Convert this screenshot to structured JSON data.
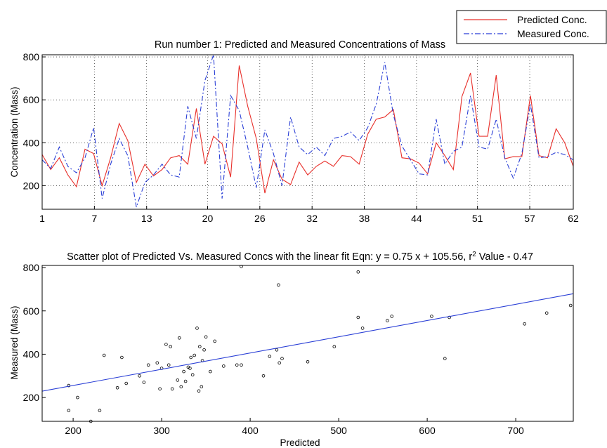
{
  "chart_data": [
    {
      "type": "line",
      "title": "Run number 1: Predicted and Measured Concentrations of Mass",
      "xlabel": "",
      "ylabel": "Concentration (Mass)",
      "xlim": [
        1,
        62
      ],
      "ylim": [
        90,
        810
      ],
      "xticks": [
        1,
        7,
        13,
        20,
        26,
        32,
        38,
        44,
        51,
        57,
        62
      ],
      "xtick_labels": [
        "1",
        "7",
        "13",
        "20",
        "26",
        "32",
        "38",
        "44",
        "51",
        "57",
        "62"
      ],
      "yticks": [
        200,
        400,
        600,
        800
      ],
      "ytick_labels": [
        "200",
        "400",
        "600",
        "800"
      ],
      "grid": true,
      "legend": {
        "placement": "top-right",
        "entries": [
          "Predicted Conc.",
          "Measured Conc."
        ]
      },
      "series": [
        {
          "name": "Predicted Conc.",
          "color": "#e8302b",
          "style": "solid",
          "values": [
            345,
            275,
            330,
            250,
            195,
            370,
            350,
            200,
            330,
            490,
            410,
            215,
            300,
            245,
            275,
            330,
            340,
            300,
            560,
            300,
            430,
            395,
            240,
            760,
            570,
            420,
            165,
            320,
            230,
            205,
            310,
            250,
            290,
            315,
            290,
            340,
            335,
            300,
            440,
            510,
            520,
            555,
            330,
            325,
            305,
            255,
            400,
            340,
            275,
            615,
            725,
            430,
            430,
            715,
            325,
            335,
            335,
            620,
            340,
            330,
            465,
            400,
            290
          ]
        },
        {
          "name": "Measured Conc.",
          "color": "#2a3fd6",
          "style": "dashdot",
          "values": [
            320,
            280,
            380,
            290,
            260,
            330,
            470,
            140,
            300,
            420,
            340,
            100,
            215,
            250,
            300,
            250,
            240,
            570,
            420,
            690,
            810,
            140,
            620,
            550,
            380,
            190,
            460,
            350,
            200,
            520,
            380,
            345,
            380,
            340,
            420,
            430,
            450,
            410,
            470,
            580,
            775,
            530,
            385,
            320,
            255,
            250,
            510,
            300,
            360,
            380,
            620,
            380,
            370,
            510,
            330,
            235,
            350,
            580,
            330,
            335,
            355,
            345,
            320
          ]
        }
      ]
    },
    {
      "type": "scatter",
      "title_main": "Scatter plot of Predicted Vs. Measured Concs with the linear fit Eqn: y = 0.75 x + 105.56, r",
      "title_sup": "2",
      "title_tail": " Value - 0.47",
      "xlabel": "Predicted",
      "ylabel": "Measured (Mass)",
      "xlim": [
        165,
        765
      ],
      "ylim": [
        90,
        810
      ],
      "xticks": [
        200,
        300,
        400,
        500,
        600,
        700
      ],
      "xtick_labels": [
        "200",
        "300",
        "400",
        "500",
        "600",
        "700"
      ],
      "yticks": [
        200,
        400,
        600,
        800
      ],
      "ytick_labels": [
        "200",
        "400",
        "600",
        "800"
      ],
      "grid": false,
      "fit": {
        "slope": 0.75,
        "intercept": 105.56,
        "r2": 0.47,
        "color": "#2a3fd6"
      },
      "points": [
        [
          195,
          140
        ],
        [
          195,
          255
        ],
        [
          205,
          200
        ],
        [
          220,
          90
        ],
        [
          230,
          140
        ],
        [
          235,
          395
        ],
        [
          250,
          245
        ],
        [
          255,
          385
        ],
        [
          260,
          265
        ],
        [
          275,
          300
        ],
        [
          280,
          270
        ],
        [
          285,
          350
        ],
        [
          295,
          360
        ],
        [
          298,
          240
        ],
        [
          300,
          335
        ],
        [
          305,
          445
        ],
        [
          308,
          350
        ],
        [
          310,
          435
        ],
        [
          312,
          240
        ],
        [
          318,
          280
        ],
        [
          320,
          475
        ],
        [
          322,
          250
        ],
        [
          325,
          320
        ],
        [
          327,
          275
        ],
        [
          330,
          340
        ],
        [
          332,
          335
        ],
        [
          333,
          385
        ],
        [
          335,
          305
        ],
        [
          337,
          395
        ],
        [
          340,
          520
        ],
        [
          342,
          230
        ],
        [
          343,
          435
        ],
        [
          345,
          250
        ],
        [
          346,
          370
        ],
        [
          348,
          420
        ],
        [
          350,
          480
        ],
        [
          355,
          320
        ],
        [
          360,
          460
        ],
        [
          370,
          345
        ],
        [
          385,
          350
        ],
        [
          390,
          350
        ],
        [
          390,
          805
        ],
        [
          415,
          300
        ],
        [
          422,
          390
        ],
        [
          430,
          420
        ],
        [
          432,
          720
        ],
        [
          433,
          360
        ],
        [
          436,
          380
        ],
        [
          465,
          365
        ],
        [
          495,
          435
        ],
        [
          522,
          780
        ],
        [
          522,
          570
        ],
        [
          527,
          520
        ],
        [
          555,
          555
        ],
        [
          560,
          575
        ],
        [
          605,
          575
        ],
        [
          620,
          380
        ],
        [
          625,
          570
        ],
        [
          710,
          540
        ],
        [
          735,
          590
        ],
        [
          762,
          625
        ]
      ]
    }
  ]
}
